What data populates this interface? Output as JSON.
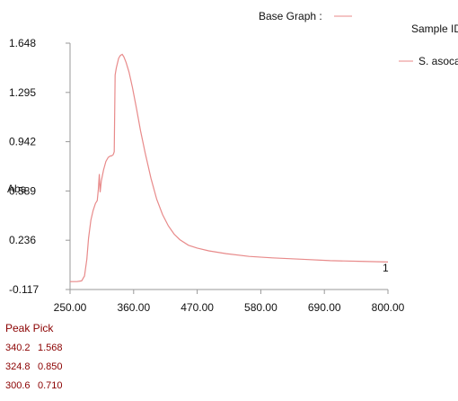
{
  "header": {
    "base_graph_label": "Base Graph :",
    "sample_id_label": "Sample ID"
  },
  "legend": {
    "entries": [
      {
        "name": "S. asoca",
        "color": "#e88a8a"
      }
    ]
  },
  "colors": {
    "trace": "#e88a8a",
    "axis": "#999999",
    "peak_text": "#8b0000"
  },
  "peak_pick": {
    "title": "Peak Pick",
    "rows": [
      {
        "wavelength": "340.2",
        "abs": "1.568"
      },
      {
        "wavelength": "324.8",
        "abs": "0.850"
      },
      {
        "wavelength": "300.6",
        "abs": "0.710"
      }
    ]
  },
  "chart_data": {
    "type": "line",
    "title": "",
    "xlabel": "",
    "ylabel": "Abs",
    "xlim": [
      250,
      800
    ],
    "ylim": [
      -0.117,
      1.648
    ],
    "x_ticks": [
      "250.00",
      "360.00",
      "470.00",
      "580.00",
      "690.00",
      "800.00"
    ],
    "y_ticks": [
      "-0.117",
      "0.236",
      "0.589",
      "0.942",
      "1.295",
      "1.648"
    ],
    "end_label": "1",
    "grid": false,
    "legend_position": "right",
    "series": [
      {
        "name": "S. asoca",
        "x": [
          250,
          262,
          270,
          275,
          279,
          282,
          286,
          290,
          294,
          297,
          299,
          300.6,
          302,
          304,
          308,
          312,
          316,
          320,
          322,
          324.8,
          326.5,
          328,
          330,
          334,
          337,
          340.2,
          343,
          347,
          352,
          358,
          365,
          372,
          380,
          390,
          400,
          410,
          420,
          430,
          440,
          455,
          470,
          490,
          520,
          560,
          600,
          650,
          700,
          750,
          800
        ],
        "y": [
          -0.06,
          -0.06,
          -0.055,
          -0.02,
          0.1,
          0.25,
          0.38,
          0.45,
          0.5,
          0.52,
          0.6,
          0.71,
          0.58,
          0.66,
          0.74,
          0.8,
          0.83,
          0.84,
          0.84,
          0.85,
          0.87,
          1.42,
          1.47,
          1.54,
          1.56,
          1.568,
          1.55,
          1.51,
          1.44,
          1.33,
          1.18,
          1.02,
          0.86,
          0.68,
          0.53,
          0.42,
          0.34,
          0.28,
          0.24,
          0.2,
          0.18,
          0.16,
          0.14,
          0.12,
          0.11,
          0.1,
          0.09,
          0.085,
          0.08
        ]
      }
    ]
  }
}
